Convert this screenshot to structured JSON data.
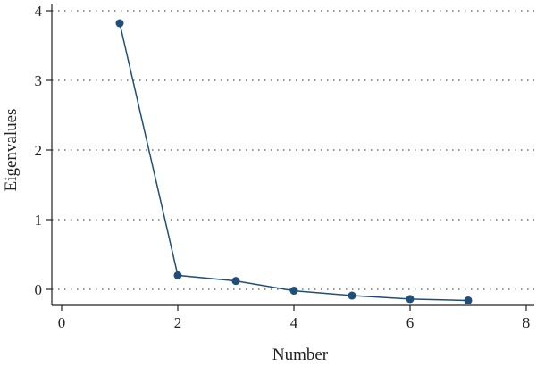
{
  "chart_data": {
    "type": "line",
    "title": "",
    "xlabel": "Number",
    "ylabel": "Eigenvalues",
    "xlim": [
      0,
      8
    ],
    "ylim": [
      -0.3,
      4.1
    ],
    "x_ticks": [
      0,
      2,
      4,
      6,
      8
    ],
    "y_ticks": [
      0,
      1,
      2,
      3,
      4
    ],
    "grid": "horizontal dotted",
    "legend": "none",
    "colors": {
      "series": "#1f4e79",
      "axis": "#222222",
      "grid": "#555555"
    },
    "series": [
      {
        "x": [
          1,
          2,
          3,
          4,
          5,
          6,
          7
        ],
        "values": [
          3.82,
          0.2,
          0.12,
          -0.02,
          -0.09,
          -0.14,
          -0.16
        ]
      }
    ]
  }
}
